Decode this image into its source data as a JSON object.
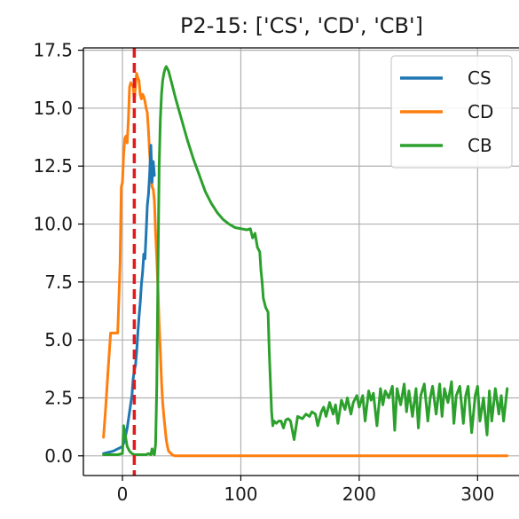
{
  "chart_data": {
    "type": "line",
    "title": "P2-15: ['CS', 'CD', 'CB']",
    "xlabel": "",
    "ylabel": "",
    "xlim": [
      -33,
      335
    ],
    "ylim": [
      -0.85,
      17.6
    ],
    "x_ticks": [
      0,
      100,
      200,
      300
    ],
    "y_ticks": [
      0.0,
      2.5,
      5.0,
      7.5,
      10.0,
      12.5,
      15.0,
      17.5
    ],
    "x_tick_labels": [
      "0",
      "100",
      "200",
      "300"
    ],
    "y_tick_labels": [
      "0.0",
      "2.5",
      "5.0",
      "7.5",
      "10.0",
      "12.5",
      "15.0",
      "17.5"
    ],
    "grid": true,
    "legend_position": "top-right",
    "vline": {
      "x": 10,
      "color": "#e31a1c",
      "style": "dashed"
    },
    "series": [
      {
        "name": "CS",
        "color": "#1f77b4",
        "x": [
          -16,
          -8,
          0,
          2,
          4,
          6,
          8,
          9,
          10,
          11,
          12,
          13,
          14,
          15,
          16,
          17,
          18,
          19,
          20,
          21,
          22,
          23,
          24,
          25,
          26,
          27
        ],
        "y": [
          0.1,
          0.2,
          0.4,
          0.7,
          1.2,
          1.9,
          2.6,
          3.3,
          3.7,
          3.9,
          4.5,
          5.3,
          6.0,
          6.6,
          7.4,
          7.9,
          8.7,
          8.5,
          9.6,
          10.8,
          11.3,
          12.2,
          13.4,
          11.8,
          12.7,
          12.1
        ]
      },
      {
        "name": "CD",
        "color": "#ff7f0e",
        "x": [
          -16,
          -14,
          -12,
          -10,
          -8,
          -6,
          -4,
          -2,
          -1,
          0,
          1,
          2,
          3,
          4,
          5,
          6,
          7,
          8,
          9,
          10,
          11,
          12,
          13,
          14,
          15,
          16,
          17,
          18,
          19,
          20,
          21,
          22,
          23,
          24,
          25,
          26,
          27,
          28,
          29,
          30,
          31,
          32,
          33,
          34,
          35,
          36,
          37,
          38,
          39,
          40,
          41,
          42,
          43,
          45,
          60,
          100,
          150,
          200,
          250,
          300,
          325
        ],
        "y": [
          0.8,
          2.2,
          3.8,
          5.3,
          5.3,
          5.3,
          5.3,
          8.3,
          11.6,
          11.8,
          13.0,
          13.7,
          13.8,
          13.5,
          14.5,
          15.9,
          16.1,
          16.0,
          16.0,
          15.3,
          16.0,
          16.5,
          16.3,
          16.2,
          15.6,
          15.4,
          15.6,
          15.5,
          15.3,
          15.0,
          14.8,
          14.0,
          13.0,
          12.4,
          11.6,
          11.5,
          11.0,
          9.6,
          8.5,
          7.2,
          5.7,
          4.5,
          3.2,
          2.3,
          1.7,
          1.2,
          0.7,
          0.4,
          0.2,
          0.15,
          0.1,
          0.05,
          0.02,
          0.0,
          0.0,
          0.0,
          0.0,
          0.0,
          0.0,
          0.0,
          0.0
        ]
      },
      {
        "name": "CB",
        "color": "#2ca02c",
        "x": [
          -16,
          -8,
          -4,
          0,
          1,
          2,
          4,
          6,
          8,
          10,
          12,
          14,
          16,
          18,
          20,
          22,
          24,
          25,
          26,
          27,
          28,
          29,
          30,
          31,
          32,
          33,
          34,
          35,
          36,
          37,
          38,
          39,
          40,
          42,
          45,
          50,
          55,
          60,
          65,
          70,
          75,
          80,
          85,
          90,
          95,
          100,
          105,
          108,
          110,
          112,
          114,
          116,
          117,
          118,
          119,
          120,
          121,
          122,
          123,
          124,
          125,
          126,
          127,
          128,
          130,
          132,
          134,
          136,
          138,
          140,
          142,
          145,
          148,
          150,
          152,
          155,
          158,
          160,
          163,
          165,
          168,
          170,
          172,
          175,
          178,
          180,
          182,
          185,
          188,
          190,
          193,
          195,
          198,
          200,
          203,
          205,
          208,
          210,
          212,
          215,
          218,
          220,
          222,
          225,
          228,
          230,
          232,
          235,
          238,
          240,
          242,
          245,
          248,
          250,
          252,
          255,
          258,
          260,
          262,
          265,
          268,
          270,
          272,
          275,
          278,
          280,
          282,
          285,
          288,
          290,
          292,
          295,
          298,
          300,
          302,
          305,
          308,
          310,
          312,
          315,
          318,
          320,
          322,
          325
        ],
        "y": [
          0.05,
          0.05,
          0.05,
          0.1,
          1.3,
          1.0,
          0.4,
          0.2,
          0.1,
          0.05,
          0.05,
          0.05,
          0.05,
          0.05,
          0.05,
          0.1,
          0.05,
          0.3,
          0.1,
          0.05,
          0.5,
          3.0,
          8.0,
          12.5,
          14.5,
          15.6,
          16.2,
          16.5,
          16.7,
          16.8,
          16.7,
          16.6,
          16.4,
          16.0,
          15.4,
          14.5,
          13.6,
          12.8,
          12.1,
          11.4,
          10.9,
          10.5,
          10.2,
          10.0,
          9.85,
          9.8,
          9.75,
          9.8,
          9.4,
          9.6,
          9.0,
          8.8,
          8.0,
          7.5,
          6.8,
          6.6,
          6.4,
          6.3,
          6.2,
          4.5,
          3.2,
          1.9,
          1.3,
          1.5,
          1.4,
          1.5,
          1.5,
          1.2,
          1.55,
          1.6,
          1.5,
          0.7,
          1.7,
          1.65,
          1.6,
          1.8,
          1.7,
          1.9,
          1.8,
          1.3,
          1.9,
          2.1,
          1.7,
          2.3,
          1.8,
          2.2,
          1.4,
          2.4,
          2.0,
          2.5,
          1.8,
          2.3,
          2.6,
          2.1,
          2.6,
          1.5,
          2.8,
          2.4,
          2.7,
          1.3,
          2.9,
          2.2,
          2.8,
          2.5,
          3.0,
          1.1,
          2.9,
          2.2,
          3.1,
          1.9,
          2.8,
          1.7,
          2.9,
          1.2,
          2.6,
          3.1,
          1.5,
          2.5,
          3.0,
          1.8,
          3.1,
          1.7,
          2.9,
          2.3,
          3.2,
          1.4,
          2.6,
          3.0,
          1.4,
          2.6,
          3.0,
          1.0,
          2.6,
          3.0,
          1.5,
          2.5,
          0.9,
          2.8,
          1.5,
          2.9,
          1.8,
          2.6,
          1.5,
          2.9
        ]
      }
    ]
  }
}
